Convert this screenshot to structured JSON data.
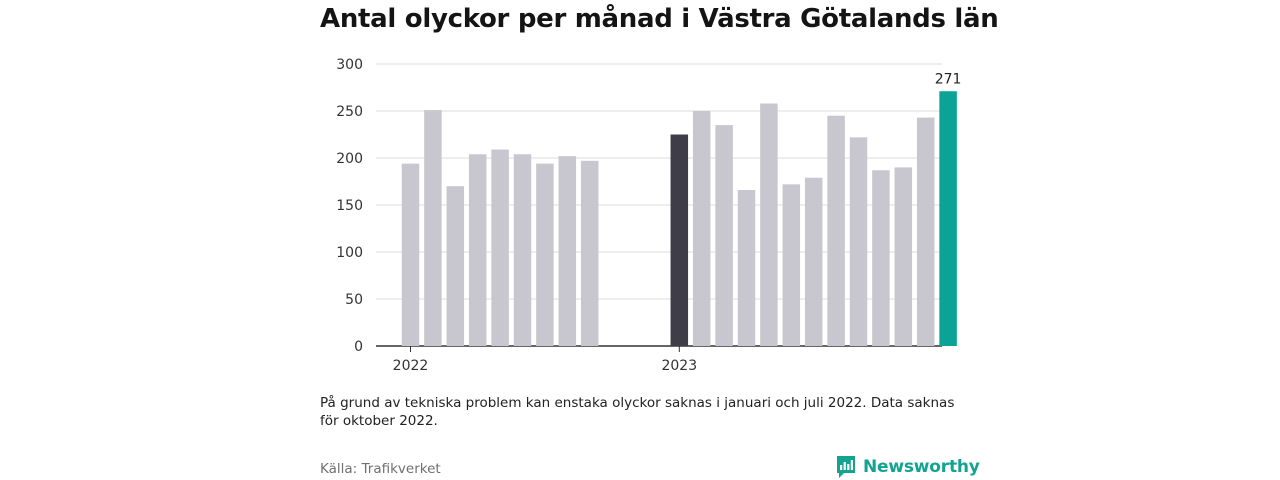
{
  "title": "Antal olyckor per månad i Västra Götalands län",
  "note": "På grund av tekniska problem kan enstaka olyckor saknas i januari och juli 2022. Data saknas för oktober 2022.",
  "source": "Källa: Trafikverket",
  "brand": "Newsworthy",
  "colors": {
    "default_bar": "#c8c7cf",
    "highlight_previous_year": "#3f3d47",
    "highlight_latest": "#0aa395",
    "grid": "#dcdcdc",
    "axis": "#333333",
    "brand": "#12a391"
  },
  "chart_data": {
    "type": "bar",
    "title": "Antal olyckor per månad i Västra Götalands län",
    "xlabel": "",
    "ylabel": "",
    "ylim": [
      0,
      300
    ],
    "yticks": [
      0,
      50,
      100,
      150,
      200,
      250,
      300
    ],
    "x_tick_labels": [
      {
        "label": "2022",
        "at_index": 0
      },
      {
        "label": "2023",
        "at_index": 12
      }
    ],
    "grid": true,
    "legend": "none",
    "categories": [
      "2022-01",
      "2022-02",
      "2022-03",
      "2022-04",
      "2022-05",
      "2022-06",
      "2022-07",
      "2022-08",
      "2022-09",
      "2022-10",
      "2022-11",
      "2022-12",
      "2023-01",
      "2023-02",
      "2023-03",
      "2023-04",
      "2023-05",
      "2023-06",
      "2023-07",
      "2023-08",
      "2023-09",
      "2023-10",
      "2023-11",
      "2023-12",
      "2024-01"
    ],
    "values": [
      194,
      251,
      170,
      204,
      209,
      204,
      194,
      202,
      197,
      null,
      null,
      null,
      225,
      250,
      235,
      166,
      258,
      172,
      179,
      245,
      222,
      187,
      190,
      243,
      271
    ],
    "highlight": [
      {
        "index": 12,
        "color_key": "highlight_previous_year"
      },
      {
        "index": 24,
        "color_key": "highlight_latest",
        "data_label": "271"
      }
    ]
  }
}
